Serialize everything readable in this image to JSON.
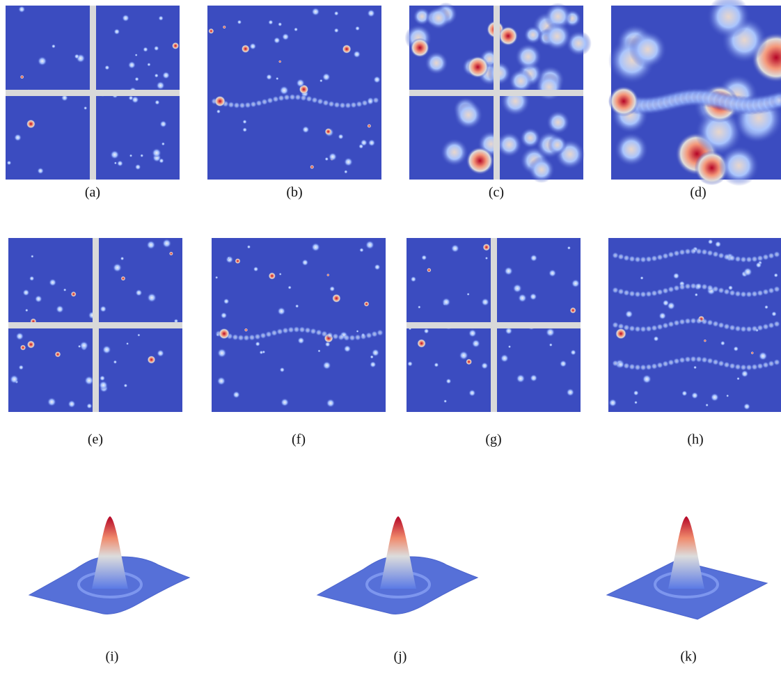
{
  "panels": [
    {
      "label": "(a)"
    },
    {
      "label": "(b)"
    },
    {
      "label": "(c)"
    },
    {
      "label": "(d)"
    },
    {
      "label": "(e)"
    },
    {
      "label": "(f)"
    },
    {
      "label": "(g)"
    },
    {
      "label": "(h)"
    },
    {
      "label": "(i)"
    },
    {
      "label": "(j)"
    },
    {
      "label": "(k)"
    }
  ]
}
